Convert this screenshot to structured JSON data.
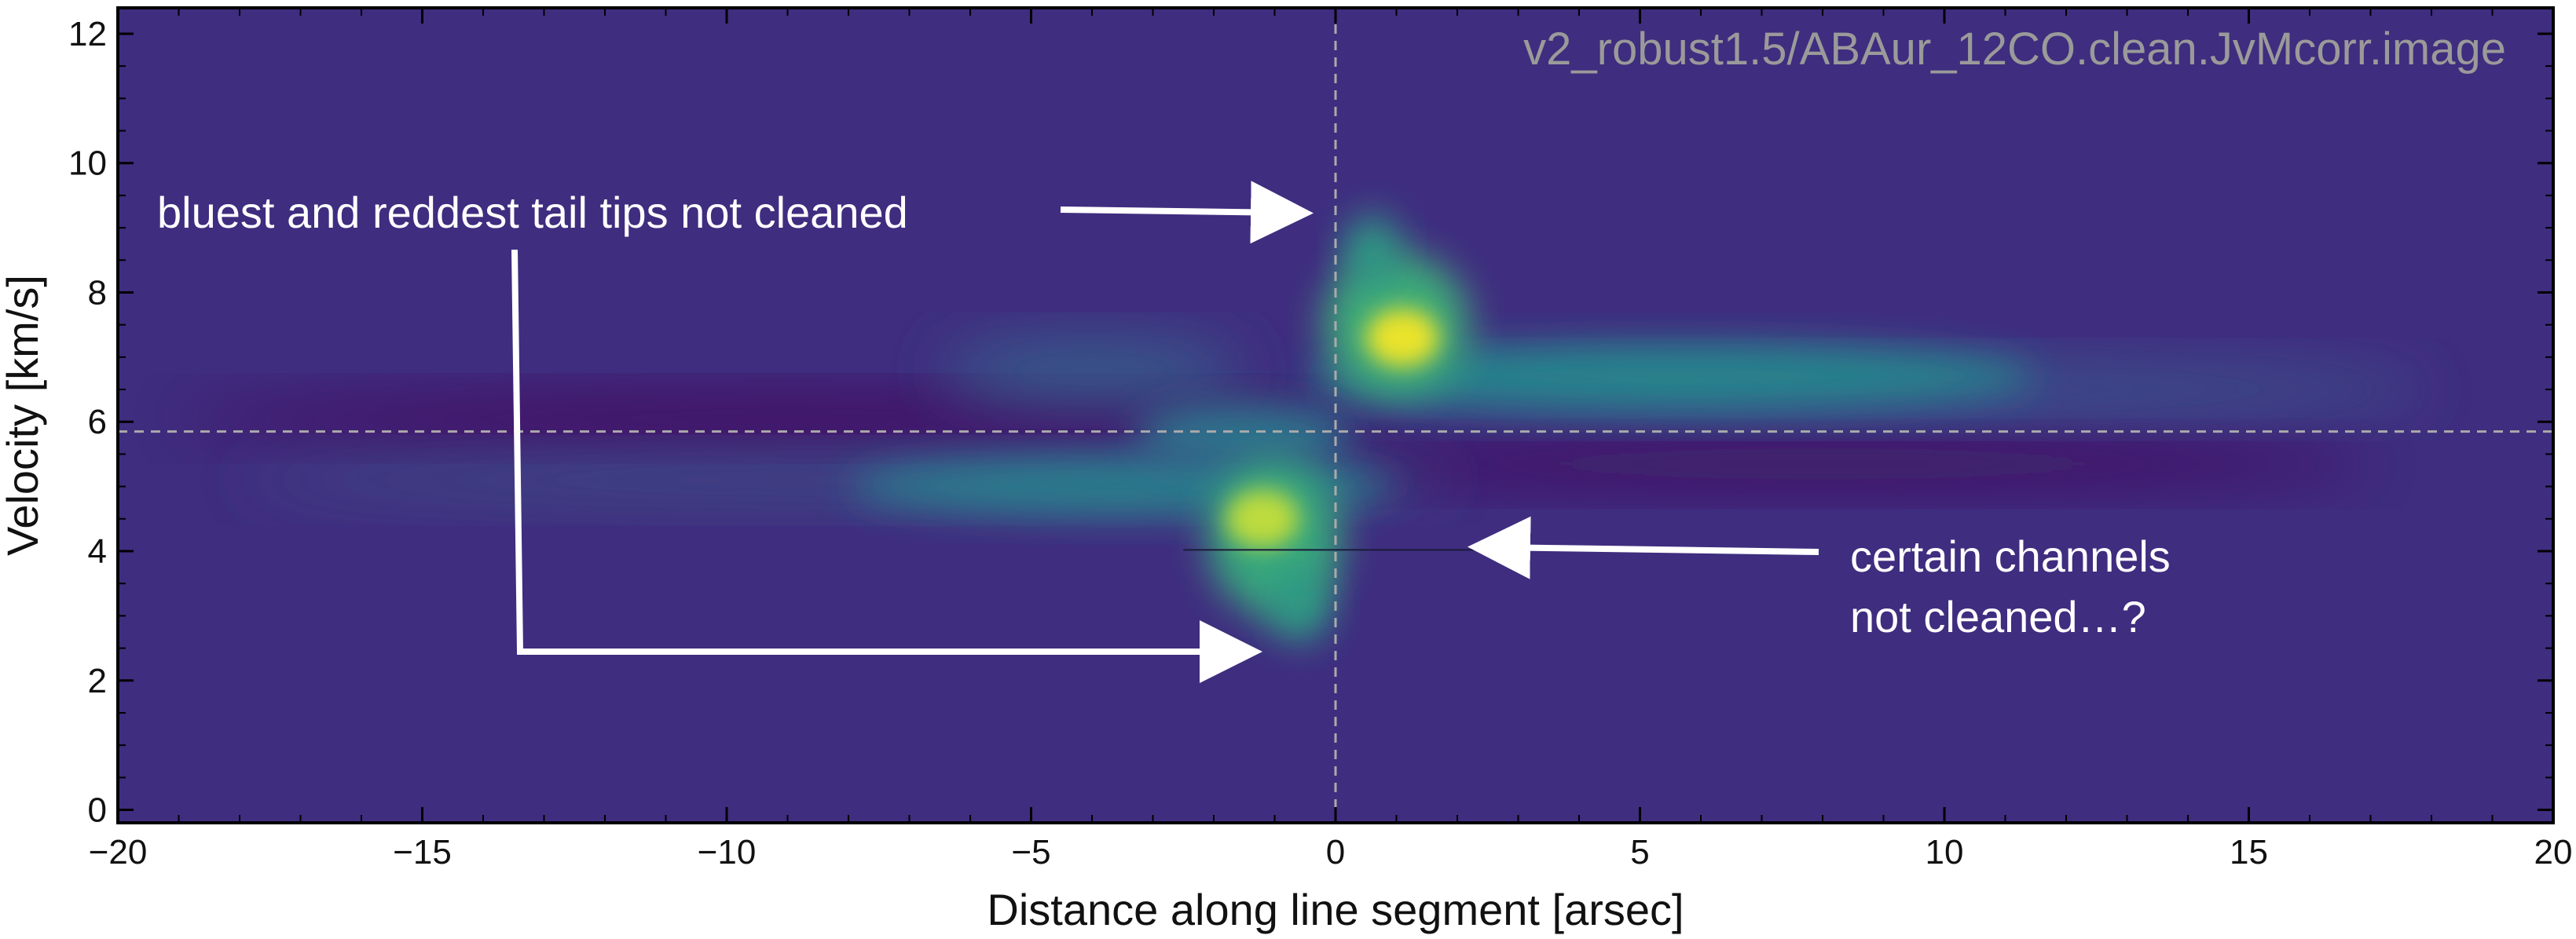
{
  "chart_data": {
    "type": "heatmap",
    "title": "",
    "xlabel": "Distance along line segment [arsec]",
    "ylabel": "Velocity [km/s]",
    "xlim": [
      -20,
      20
    ],
    "ylim": [
      -0.2,
      12.4
    ],
    "xticks": [
      -20,
      -15,
      -10,
      -5,
      0,
      5,
      10,
      15,
      20
    ],
    "xtick_labels": [
      "−20",
      "−15",
      "−10",
      "−5",
      "0",
      "5",
      "10",
      "15",
      "20"
    ],
    "yticks": [
      0,
      2,
      4,
      6,
      8,
      10,
      12
    ],
    "ytick_labels": [
      "0",
      "2",
      "4",
      "6",
      "8",
      "10",
      "12"
    ],
    "colormap": "viridis",
    "background_color": "#3f2d7f",
    "reference_lines": [
      {
        "orientation": "vertical",
        "value": 0,
        "style": "dashed",
        "color": "#aaaaaa"
      },
      {
        "orientation": "horizontal",
        "value": 5.85,
        "style": "dashed",
        "color": "#aaaaaa"
      }
    ],
    "emission_features": [
      {
        "name": "red lobe peak",
        "x": 1.1,
        "y": 7.3,
        "intensity": 1.0
      },
      {
        "name": "red tail",
        "x_range": [
          0.5,
          13
        ],
        "y": 6.6,
        "intensity": 0.45
      },
      {
        "name": "blue lobe peak",
        "x": -1.2,
        "y": 4.5,
        "intensity": 0.95
      },
      {
        "name": "blue tail",
        "x_range": [
          -18,
          -1
        ],
        "y": 5.1,
        "intensity": 0.35
      },
      {
        "name": "faint upper arm",
        "x_range": [
          -6,
          -1
        ],
        "y": 6.8,
        "intensity": 0.25
      }
    ],
    "grid": false
  },
  "watermark": "v2_robust1.5/ABAur_12CO.clean.JvMcorr.image",
  "annotations": {
    "tail_tips": "bluest and reddest tail tips not cleaned",
    "channels_line1": "certain channels",
    "channels_line2": "not cleaned…?"
  },
  "colors": {
    "annotation": "#ffffff",
    "axis": "#000000",
    "dashed": "#aaaaaa"
  }
}
